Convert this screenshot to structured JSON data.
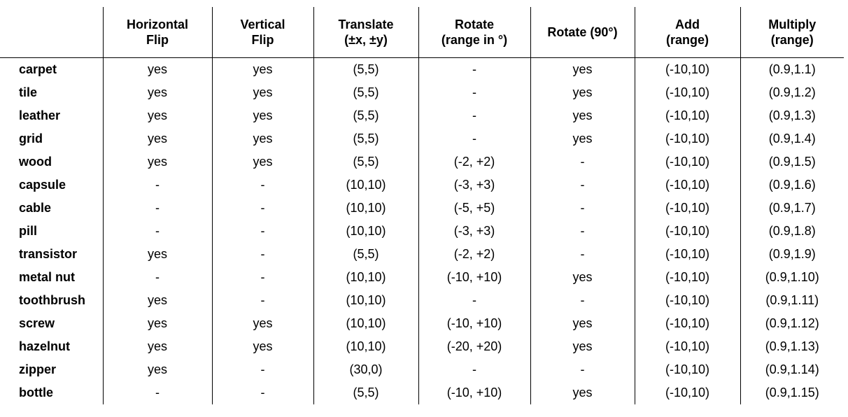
{
  "table": {
    "header": [
      [
        "Horizontal",
        "Flip"
      ],
      [
        "Vertical",
        "Flip"
      ],
      [
        "Translate",
        "(±x, ±y)"
      ],
      [
        "Rotate",
        "(range in °)"
      ],
      [
        "Rotate (90°)"
      ],
      [
        "Add",
        "(range)"
      ],
      [
        "Multiply",
        "(range)"
      ]
    ],
    "rows": [
      [
        "carpet",
        "yes",
        "yes",
        "(5,5)",
        "-",
        "yes",
        "(-10,10)",
        "(0.9,1.1)"
      ],
      [
        "tile",
        "yes",
        "yes",
        "(5,5)",
        "-",
        "yes",
        "(-10,10)",
        "(0.9,1.2)"
      ],
      [
        "leather",
        "yes",
        "yes",
        "(5,5)",
        "-",
        "yes",
        "(-10,10)",
        "(0.9,1.3)"
      ],
      [
        "grid",
        "yes",
        "yes",
        "(5,5)",
        "-",
        "yes",
        "(-10,10)",
        "(0.9,1.4)"
      ],
      [
        "wood",
        "yes",
        "yes",
        "(5,5)",
        "(-2, +2)",
        "-",
        "(-10,10)",
        "(0.9,1.5)"
      ],
      [
        "capsule",
        "-",
        "-",
        "(10,10)",
        "(-3, +3)",
        "-",
        "(-10,10)",
        "(0.9,1.6)"
      ],
      [
        "cable",
        "-",
        "-",
        "(10,10)",
        "(-5, +5)",
        "-",
        "(-10,10)",
        "(0.9,1.7)"
      ],
      [
        "pill",
        "-",
        "-",
        "(10,10)",
        "(-3, +3)",
        "-",
        "(-10,10)",
        "(0.9,1.8)"
      ],
      [
        "transistor",
        "yes",
        "-",
        "(5,5)",
        "(-2, +2)",
        "-",
        "(-10,10)",
        "(0.9,1.9)"
      ],
      [
        "metal nut",
        "-",
        "-",
        "(10,10)",
        "(-10, +10)",
        "yes",
        "(-10,10)",
        "(0.9,1.10)"
      ],
      [
        "toothbrush",
        "yes",
        "-",
        "(10,10)",
        "-",
        "-",
        "(-10,10)",
        "(0.9,1.11)"
      ],
      [
        "screw",
        "yes",
        "yes",
        "(10,10)",
        "(-10, +10)",
        "yes",
        "(-10,10)",
        "(0.9,1.12)"
      ],
      [
        "hazelnut",
        "yes",
        "yes",
        "(10,10)",
        "(-20, +20)",
        "yes",
        "(-10,10)",
        "(0.9,1.13)"
      ],
      [
        "zipper",
        "yes",
        "-",
        "(30,0)",
        "-",
        "-",
        "(-10,10)",
        "(0.9,1.14)"
      ],
      [
        "bottle",
        "-",
        "-",
        "(5,5)",
        "(-10, +10)",
        "yes",
        "(-10,10)",
        "(0.9,1.15)"
      ]
    ]
  }
}
